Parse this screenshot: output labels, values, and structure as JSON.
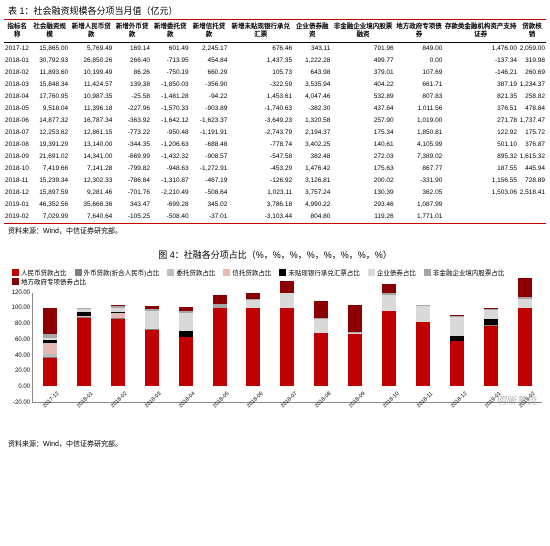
{
  "table_title": "表 1：社会融资规模各分项当月值（亿元）",
  "columns": [
    "指标名称",
    "社会融资规模",
    "新增人民币贷款",
    "新增外币贷款",
    "新增委托贷款",
    "新增信托贷款",
    "新增未贴现银行承兑汇票",
    "企业债券融资",
    "非金融企业境内股票融资",
    "地方政府专项债券",
    "存款类金融机构资产支持证券",
    "贷款核销"
  ],
  "rows": [
    [
      "2017-12",
      "15,865.00",
      "5,769.49",
      "169.14",
      "601.49",
      "2,245.17",
      "676.46",
      "343.11",
      "791.96",
      "849.00",
      "1,476.00",
      "2,059.00"
    ],
    [
      "2018-01",
      "30,792.93",
      "26,850.26",
      "266.40",
      "-713.95",
      "454.84",
      "1,437.35",
      "1,222.28",
      "499.77",
      "0.00",
      "-137.34",
      "319.98"
    ],
    [
      "2018-02",
      "11,893.60",
      "10,199.49",
      "86.26",
      "-750.19",
      "660.29",
      "105.73",
      "643.98",
      "379.01",
      "107.69",
      "-146.21",
      "260.69"
    ],
    [
      "2018-03",
      "15,848.34",
      "11,424.57",
      "139.38",
      "-1,850.03",
      "-356.90",
      "-322.59",
      "3,535.94",
      "404.22",
      "661.71",
      "387.19",
      "1,234.37"
    ],
    [
      "2018-04",
      "17,760.95",
      "10,987.35",
      "-25.58",
      "-1,481.28",
      "-94.22",
      "1,453.61",
      "4,047.46",
      "532.89",
      "807.83",
      "821.35",
      "258.82"
    ],
    [
      "2018-05",
      "9,518.04",
      "11,396.18",
      "-227.96",
      "-1,570.33",
      "-903.89",
      "-1,740.63",
      "-382.30",
      "437.64",
      "1,011.56",
      "376.51",
      "478.84"
    ],
    [
      "2018-06",
      "14,877.32",
      "16,787.34",
      "-363.92",
      "-1,642.12",
      "-1,623.37",
      "-3,649.23",
      "1,320.58",
      "257.90",
      "1,019.00",
      "271.78",
      "1,737.47"
    ],
    [
      "2018-07",
      "12,253.62",
      "12,861.15",
      "-773.22",
      "-950.48",
      "-1,191.91",
      "-2,743.79",
      "2,194.37",
      "175.34",
      "1,850.81",
      "122.92",
      "175.72"
    ],
    [
      "2018-08",
      "19,391.29",
      "13,140.00",
      "-344.35",
      "-1,206.63",
      "-688.48",
      "-778.74",
      "3,402.25",
      "140.61",
      "4,105.99",
      "501.10",
      "376.87"
    ],
    [
      "2018-09",
      "21,691.02",
      "14,341.00",
      "-669.99",
      "-1,432.32",
      "-908.57",
      "-547.58",
      "382.48",
      "272.03",
      "7,389.02",
      "895.32",
      "1,615.32"
    ],
    [
      "2018-10",
      "7,419.66",
      "7,141.28",
      "-799.82",
      "-948.63",
      "-1,272.91",
      "-453.29",
      "1,476.42",
      "175.63",
      "867.77",
      "187.55",
      "445.94"
    ],
    [
      "2018-11",
      "15,239.34",
      "12,302.33",
      "-786.84",
      "-1,310.87",
      "-467.19",
      "-126.92",
      "3,126.81",
      "200.02",
      "-331.90",
      "1,156.55",
      "728.89"
    ],
    [
      "2018-12",
      "15,897.59",
      "9,281.46",
      "-701.76",
      "-2,210.49",
      "-508.64",
      "1,023.11",
      "3,757.24",
      "130.39",
      "362.05",
      "1,503.06",
      "2,518.41"
    ],
    [
      "2019-01",
      "46,352.56",
      "35,668.36",
      "343.47",
      "-699.28",
      "345.02",
      "3,786.18",
      "4,990.22",
      "293.46",
      "1,087.99",
      "",
      ""
    ],
    [
      "2019-02",
      "7,029.99",
      "7,640.64",
      "-105.25",
      "-508.40",
      "-37.01",
      "-3,103.44",
      "804.80",
      "119.26",
      "1,771.01",
      "",
      ""
    ]
  ],
  "source": "资料来源：Wind，中信证券研究部。",
  "chart_title": "图 4：社融各分项占比（%，%，%，%，%，%，%，%）",
  "legend": [
    {
      "label": "人民币贷款占比",
      "color": "#c00000"
    },
    {
      "label": "外币贷款(折合人民币)占比",
      "color": "#7f7f7f"
    },
    {
      "label": "委托贷款占比",
      "color": "#bfbfbf"
    },
    {
      "label": "信托贷款占比",
      "color": "#e6b8b7"
    },
    {
      "label": "未贴现银行承兑汇票占比",
      "color": "#000000"
    },
    {
      "label": "企业债券占比",
      "color": "#d9d9d9"
    },
    {
      "label": "非金融企业境内股票占比",
      "color": "#a6a6a6"
    },
    {
      "label": "地方政府专项债券占比",
      "color": "#8b0000"
    }
  ],
  "yticks": [
    -20,
    0,
    20,
    40,
    60,
    80,
    100,
    120
  ],
  "ymin": -20,
  "ymax": 120,
  "categories": [
    "2017-12",
    "2018-01",
    "2018-02",
    "2018-03",
    "2018-04",
    "2018-05",
    "2018-06",
    "2018-07",
    "2018-08",
    "2018-09",
    "2018-10",
    "2018-11",
    "2018-12",
    "2019-01",
    "2019-02"
  ],
  "bars": [
    [
      36,
      1,
      4,
      14,
      4,
      2,
      5,
      34
    ],
    [
      87,
      1,
      0,
      1,
      5,
      4,
      2,
      0
    ],
    [
      86,
      1,
      0,
      6,
      1,
      5,
      3,
      1
    ],
    [
      72,
      1,
      0,
      0,
      0,
      22,
      3,
      4
    ],
    [
      62,
      0,
      0,
      0,
      8,
      23,
      3,
      5
    ],
    [
      100,
      0,
      0,
      0,
      0,
      0,
      5,
      11
    ],
    [
      100,
      0,
      0,
      0,
      0,
      9,
      2,
      7
    ],
    [
      100,
      0,
      0,
      0,
      0,
      18,
      1,
      15
    ],
    [
      68,
      0,
      0,
      0,
      0,
      18,
      1,
      21
    ],
    [
      66,
      0,
      0,
      0,
      0,
      2,
      1,
      34
    ],
    [
      96,
      0,
      0,
      0,
      0,
      20,
      2,
      12
    ],
    [
      81,
      0,
      0,
      0,
      0,
      21,
      1,
      0
    ],
    [
      58,
      0,
      0,
      0,
      6,
      24,
      1,
      2
    ],
    [
      77,
      1,
      0,
      0,
      8,
      11,
      1,
      2
    ],
    [
      100,
      0,
      0,
      0,
      0,
      11,
      2,
      25
    ]
  ],
  "chart_source": "资料来源：Wind，中信证券研究部。",
  "watermark": "明晰笔谈"
}
